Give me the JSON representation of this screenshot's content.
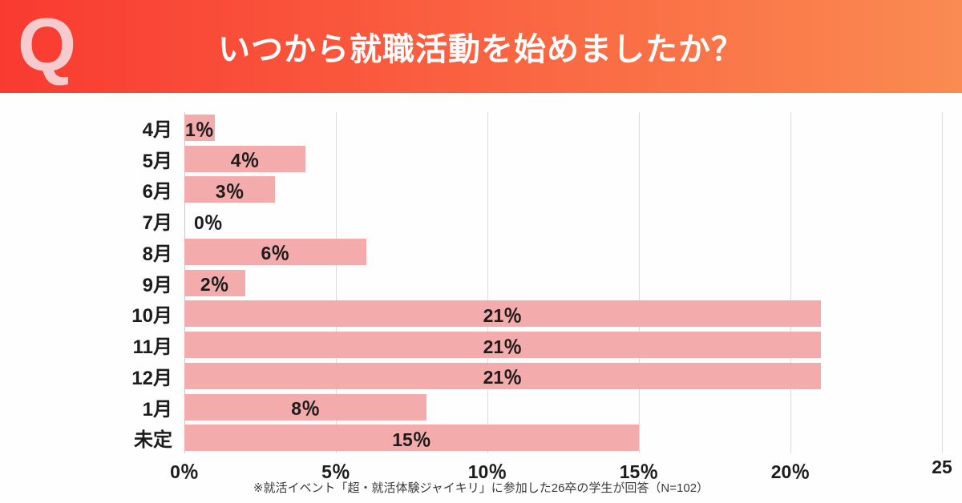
{
  "header": {
    "q_mark": "Q",
    "title": "いつから就職活動を始めましたか？",
    "gradient_left": "#F93A31",
    "gradient_right": "#FA8B51",
    "q_color": "#F5CBCE"
  },
  "chart_data": {
    "type": "bar",
    "orientation": "horizontal",
    "title": "いつから就職活動を始めましたか？",
    "categories": [
      "4月",
      "5月",
      "6月",
      "7月",
      "8月",
      "9月",
      "10月",
      "11月",
      "12月",
      "1月",
      "未定"
    ],
    "values": [
      1,
      4,
      3,
      0,
      6,
      2,
      21,
      21,
      21,
      8,
      15
    ],
    "value_labels": [
      "1％",
      "4％",
      "3％",
      "0％",
      "6％",
      "2％",
      "21％",
      "21％",
      "21％",
      "8％",
      "15％"
    ],
    "x_ticks": [
      "0％",
      "5％",
      "10％",
      "15％",
      "20％",
      "25"
    ],
    "x_tick_values": [
      0,
      5,
      10,
      15,
      20,
      25
    ],
    "xlim": [
      0,
      25
    ],
    "xlabel": "",
    "ylabel": "",
    "bar_color": "#F3ABAB",
    "grid": true,
    "gridline_color": "#DCDCDC",
    "label_position": "inside-center"
  },
  "footnote": "※就活イベント「超・就活体験ジャイキリ」に参加した26卒の学生が回答（N=102）"
}
